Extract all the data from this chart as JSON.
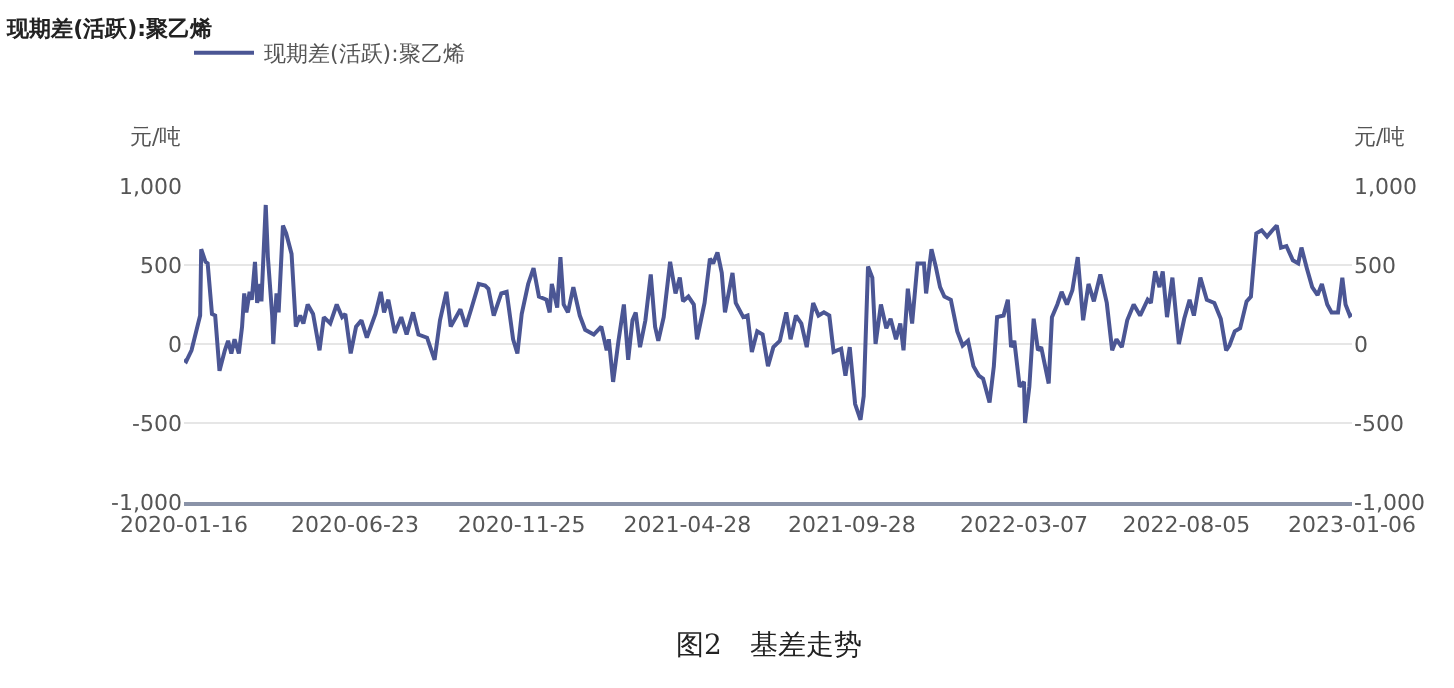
{
  "chart_data": {
    "type": "line",
    "title": "现期差(活跃):聚乙烯",
    "ylabel": "元/吨",
    "y2label": "元/吨",
    "annotations": [
      "图2　基差走势"
    ],
    "x": [
      "2020-01-16",
      "2020-01-18",
      "2020-01-23",
      "2020-01-31",
      "2020-02-01",
      "2020-02-05",
      "2020-02-07",
      "2020-02-11",
      "2020-02-14",
      "2020-02-18",
      "2020-02-23",
      "2020-02-26",
      "2020-02-29",
      "2020-03-03",
      "2020-03-07",
      "2020-03-10",
      "2020-03-12",
      "2020-03-14",
      "2020-03-17",
      "2020-03-19",
      "2020-03-22",
      "2020-03-24",
      "2020-03-27",
      "2020-03-28",
      "2020-04-01",
      "2020-04-03",
      "2020-04-07",
      "2020-04-08",
      "2020-04-11",
      "2020-04-13",
      "2020-04-17",
      "2020-04-20",
      "2020-04-25",
      "2020-04-29",
      "2020-05-03",
      "2020-05-06",
      "2020-05-10",
      "2020-05-15",
      "2020-05-21",
      "2020-05-25",
      "2020-05-31",
      "2020-06-06",
      "2020-06-11",
      "2020-06-14",
      "2020-06-19",
      "2020-06-24",
      "2020-06-29",
      "2020-07-04",
      "2020-07-12",
      "2020-07-17",
      "2020-07-20",
      "2020-07-24",
      "2020-07-30",
      "2020-08-05",
      "2020-08-10",
      "2020-08-16",
      "2020-08-21",
      "2020-08-29",
      "2020-09-05",
      "2020-09-10",
      "2020-09-16",
      "2020-09-20",
      "2020-09-29",
      "2020-10-04",
      "2020-10-09",
      "2020-10-16",
      "2020-10-22",
      "2020-10-25",
      "2020-10-30",
      "2020-11-06",
      "2020-11-11",
      "2020-11-17",
      "2020-11-21",
      "2020-11-25",
      "2020-12-01",
      "2020-12-06",
      "2020-12-11",
      "2020-12-18",
      "2020-12-21",
      "2020-12-23",
      "2020-12-28",
      "2020-12-31",
      "2021-01-03",
      "2021-01-07",
      "2021-01-12",
      "2021-01-18",
      "2021-01-23",
      "2021-01-31",
      "2021-02-07",
      "2021-02-12",
      "2021-02-14",
      "2021-02-18",
      "2021-02-23",
      "2021-02-28",
      "2021-03-04",
      "2021-03-08",
      "2021-03-11",
      "2021-03-15",
      "2021-03-20",
      "2021-03-25",
      "2021-03-29",
      "2021-04-01",
      "2021-04-06",
      "2021-04-12",
      "2021-04-17",
      "2021-04-21",
      "2021-04-24",
      "2021-04-29",
      "2021-05-04",
      "2021-05-07",
      "2021-05-14",
      "2021-05-19",
      "2021-05-22",
      "2021-05-26",
      "2021-05-30",
      "2021-06-02",
      "2021-06-09",
      "2021-06-12",
      "2021-06-19",
      "2021-06-23",
      "2021-06-27",
      "2021-07-02",
      "2021-07-07",
      "2021-07-12",
      "2021-07-17",
      "2021-07-23",
      "2021-07-29",
      "2021-08-02",
      "2021-08-07",
      "2021-08-12",
      "2021-08-17",
      "2021-08-23",
      "2021-08-28",
      "2021-09-02",
      "2021-09-07",
      "2021-09-11",
      "2021-09-18",
      "2021-09-22",
      "2021-09-26",
      "2021-10-01",
      "2021-10-06",
      "2021-10-09",
      "2021-10-13",
      "2021-10-17",
      "2021-10-20",
      "2021-10-25",
      "2021-10-30",
      "2021-11-03",
      "2021-11-08",
      "2021-11-12",
      "2021-11-15",
      "2021-11-19",
      "2021-11-23",
      "2021-11-28",
      "2021-12-04",
      "2021-12-06",
      "2021-12-11",
      "2021-12-15",
      "2021-12-19",
      "2021-12-23",
      "2021-12-29",
      "2022-01-04",
      "2022-01-09",
      "2022-01-14",
      "2022-01-19",
      "2022-01-24",
      "2022-01-28",
      "2022-02-03",
      "2022-02-07",
      "2022-02-10",
      "2022-02-16",
      "2022-02-20",
      "2022-02-23",
      "2022-02-26",
      "2022-03-03",
      "2022-03-07",
      "2022-03-08",
      "2022-03-12",
      "2022-03-16",
      "2022-03-20",
      "2022-03-23",
      "2022-03-30",
      "2022-04-02",
      "2022-04-07",
      "2022-04-11",
      "2022-04-16",
      "2022-04-21",
      "2022-04-26",
      "2022-05-01",
      "2022-05-06",
      "2022-05-11",
      "2022-05-17",
      "2022-05-23",
      "2022-05-28",
      "2022-06-01",
      "2022-06-06",
      "2022-06-11",
      "2022-06-17",
      "2022-06-23",
      "2022-06-30",
      "2022-07-03",
      "2022-07-07",
      "2022-07-11",
      "2022-07-14",
      "2022-07-18",
      "2022-07-23",
      "2022-07-29",
      "2022-08-03",
      "2022-08-08",
      "2022-08-12",
      "2022-08-18",
      "2022-08-24",
      "2022-08-31",
      "2022-09-06",
      "2022-09-11",
      "2022-09-14",
      "2022-09-19",
      "2022-09-24",
      "2022-09-30",
      "2022-10-04",
      "2022-10-09",
      "2022-10-14",
      "2022-10-19",
      "2022-10-24",
      "2022-10-28",
      "2022-11-01",
      "2022-11-06",
      "2022-11-12",
      "2022-11-17",
      "2022-11-20",
      "2022-11-25",
      "2022-11-30",
      "2022-12-05",
      "2022-12-09",
      "2022-12-14",
      "2022-12-18",
      "2022-12-24",
      "2022-12-28",
      "2022-12-31",
      "2023-01-04",
      "2023-01-06"
    ],
    "series": [
      {
        "name": "现期差(活跃):聚乙烯",
        "color": "#4b5694",
        "values": [
          -100,
          -110,
          -40,
          180,
          600,
          520,
          510,
          190,
          180,
          -170,
          -40,
          20,
          -60,
          30,
          -60,
          110,
          320,
          200,
          330,
          280,
          520,
          260,
          380,
          270,
          880,
          550,
          180,
          0,
          320,
          200,
          750,
          700,
          570,
          110,
          180,
          130,
          250,
          190,
          -40,
          170,
          130,
          250,
          170,
          190,
          -60,
          110,
          150,
          40,
          190,
          330,
          200,
          280,
          70,
          170,
          60,
          200,
          60,
          40,
          -100,
          150,
          330,
          110,
          220,
          110,
          220,
          380,
          370,
          350,
          180,
          320,
          330,
          30,
          -60,
          190,
          380,
          480,
          300,
          280,
          200,
          380,
          230,
          550,
          250,
          200,
          360,
          180,
          90,
          60,
          110,
          -40,
          30,
          -240,
          20,
          250,
          -100,
          150,
          200,
          -20,
          150,
          440,
          110,
          20,
          170,
          520,
          320,
          420,
          270,
          300,
          250,
          30,
          260,
          540,
          510,
          580,
          450,
          200,
          450,
          260,
          170,
          180,
          -50,
          80,
          60,
          -140,
          -20,
          20,
          200,
          30,
          180,
          130,
          -20,
          260,
          180,
          200,
          180,
          -50,
          -30,
          -200,
          -20,
          -380,
          -480,
          -330,
          490,
          420,
          0,
          250,
          100,
          160,
          30,
          130,
          -40,
          350,
          130,
          510,
          510,
          320,
          600,
          490,
          360,
          300,
          280,
          80,
          -10,
          20,
          -140,
          -200,
          -220,
          -370,
          -140,
          170,
          180,
          280,
          -20,
          20,
          -270,
          -240,
          -500,
          -270,
          160,
          -40,
          -20,
          -250,
          170,
          250,
          330,
          250,
          340,
          550,
          150,
          380,
          270,
          440,
          260,
          -40,
          30,
          -20,
          150,
          250,
          180,
          280,
          260,
          460,
          360,
          460,
          170,
          420,
          0,
          160,
          280,
          180,
          420,
          280,
          260,
          160,
          -40,
          -10,
          80,
          100,
          270,
          300,
          700,
          720,
          680,
          720,
          750,
          610,
          620,
          530,
          510,
          610,
          480,
          360,
          310,
          380,
          250,
          200,
          200,
          420,
          250,
          180,
          190
        ]
      }
    ],
    "xlim": [
      "2020-01-16",
      "2023-01-06"
    ],
    "xticks": [
      "2020-01-16",
      "2020-06-23",
      "2020-11-25",
      "2021-04-28",
      "2021-09-28",
      "2022-03-07",
      "2022-08-05",
      "2023-01-06"
    ],
    "ylim": [
      -1000,
      1000
    ],
    "yticks": [
      {
        "value": -1000,
        "label": "-1,000"
      },
      -500,
      0,
      500,
      {
        "value": 1000,
        "label": "1,000"
      }
    ],
    "y2lim": [
      -1000,
      1000
    ],
    "y2ticks": [
      {
        "value": -1000,
        "label": "-1,000"
      },
      -500,
      0,
      500,
      {
        "value": 1000,
        "label": "1,000"
      }
    ],
    "grid": "y",
    "legend": "top",
    "marker": "none",
    "line_style": "solid"
  }
}
